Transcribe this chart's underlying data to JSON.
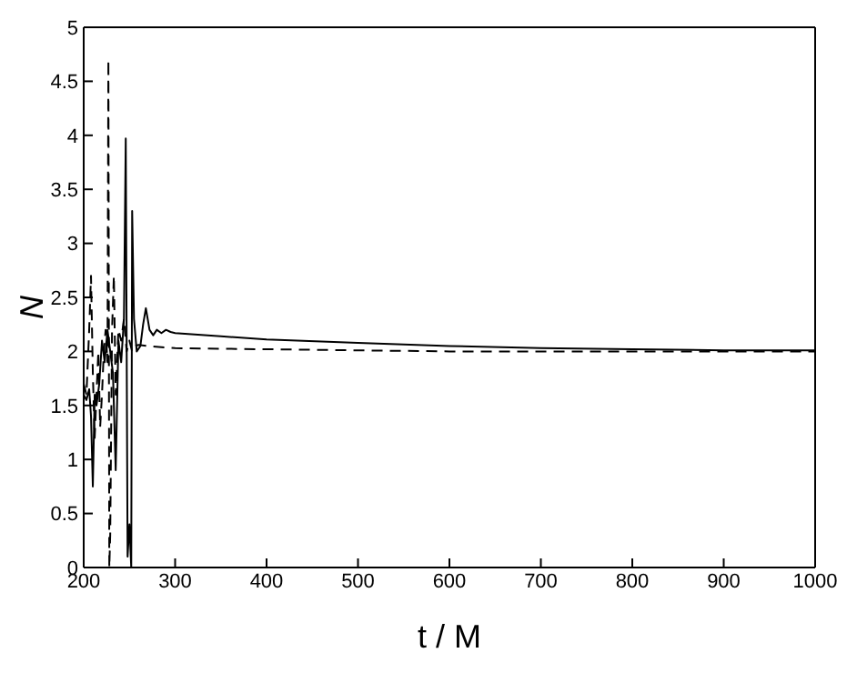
{
  "chart_data": {
    "type": "line",
    "xlabel": "t / M",
    "ylabel": "N",
    "xlim": [
      200,
      1000
    ],
    "ylim": [
      0,
      5
    ],
    "xticks": [
      200,
      300,
      400,
      500,
      600,
      700,
      800,
      900,
      1000
    ],
    "yticks": [
      0,
      0.5,
      1,
      1.5,
      2,
      2.5,
      3,
      3.5,
      4,
      4.5,
      5
    ],
    "marker": "none",
    "series": [
      {
        "color": "#000000",
        "line_style": "solid",
        "x": [
          200,
          203,
          206,
          208,
          210,
          212,
          214,
          217,
          220,
          223,
          226,
          229,
          232,
          235,
          238,
          241,
          244,
          246,
          248,
          250,
          252,
          253,
          255,
          258,
          262,
          265,
          268,
          272,
          276,
          280,
          285,
          290,
          295,
          300,
          350,
          400,
          500,
          600,
          700,
          800,
          900,
          1000
        ],
        "values": [
          1.6,
          1.55,
          1.65,
          1.4,
          0.75,
          1.6,
          1.5,
          1.7,
          2.1,
          1.9,
          2.2,
          2.0,
          1.8,
          0.9,
          2.1,
          1.9,
          2.3,
          3.97,
          0.1,
          0.4,
          0.0,
          3.3,
          2.3,
          2.0,
          2.05,
          2.25,
          2.4,
          2.2,
          2.15,
          2.2,
          2.17,
          2.2,
          2.18,
          2.17,
          2.14,
          2.11,
          2.08,
          2.05,
          2.03,
          2.02,
          2.01,
          2.01
        ]
      },
      {
        "color": "#000000",
        "line_style": "dashed",
        "x": [
          200,
          203,
          206,
          208,
          210,
          212,
          214,
          216,
          218,
          220,
          222,
          224,
          226,
          227,
          228,
          229,
          231,
          233,
          235,
          238,
          241,
          244,
          247,
          250,
          253,
          256,
          260,
          270,
          300,
          400,
          500,
          600,
          700,
          800,
          900,
          1000
        ],
        "values": [
          1.7,
          1.6,
          2.2,
          2.7,
          1.8,
          1.2,
          1.6,
          2.0,
          1.3,
          1.6,
          2.0,
          2.2,
          1.9,
          4.7,
          0.0,
          0.3,
          2.2,
          2.7,
          1.6,
          2.2,
          2.1,
          2.3,
          2.0,
          2.1,
          2.0,
          2.05,
          2.06,
          2.05,
          2.03,
          2.02,
          2.01,
          2.0,
          2.0,
          2.0,
          2.0,
          2.0
        ]
      }
    ]
  }
}
